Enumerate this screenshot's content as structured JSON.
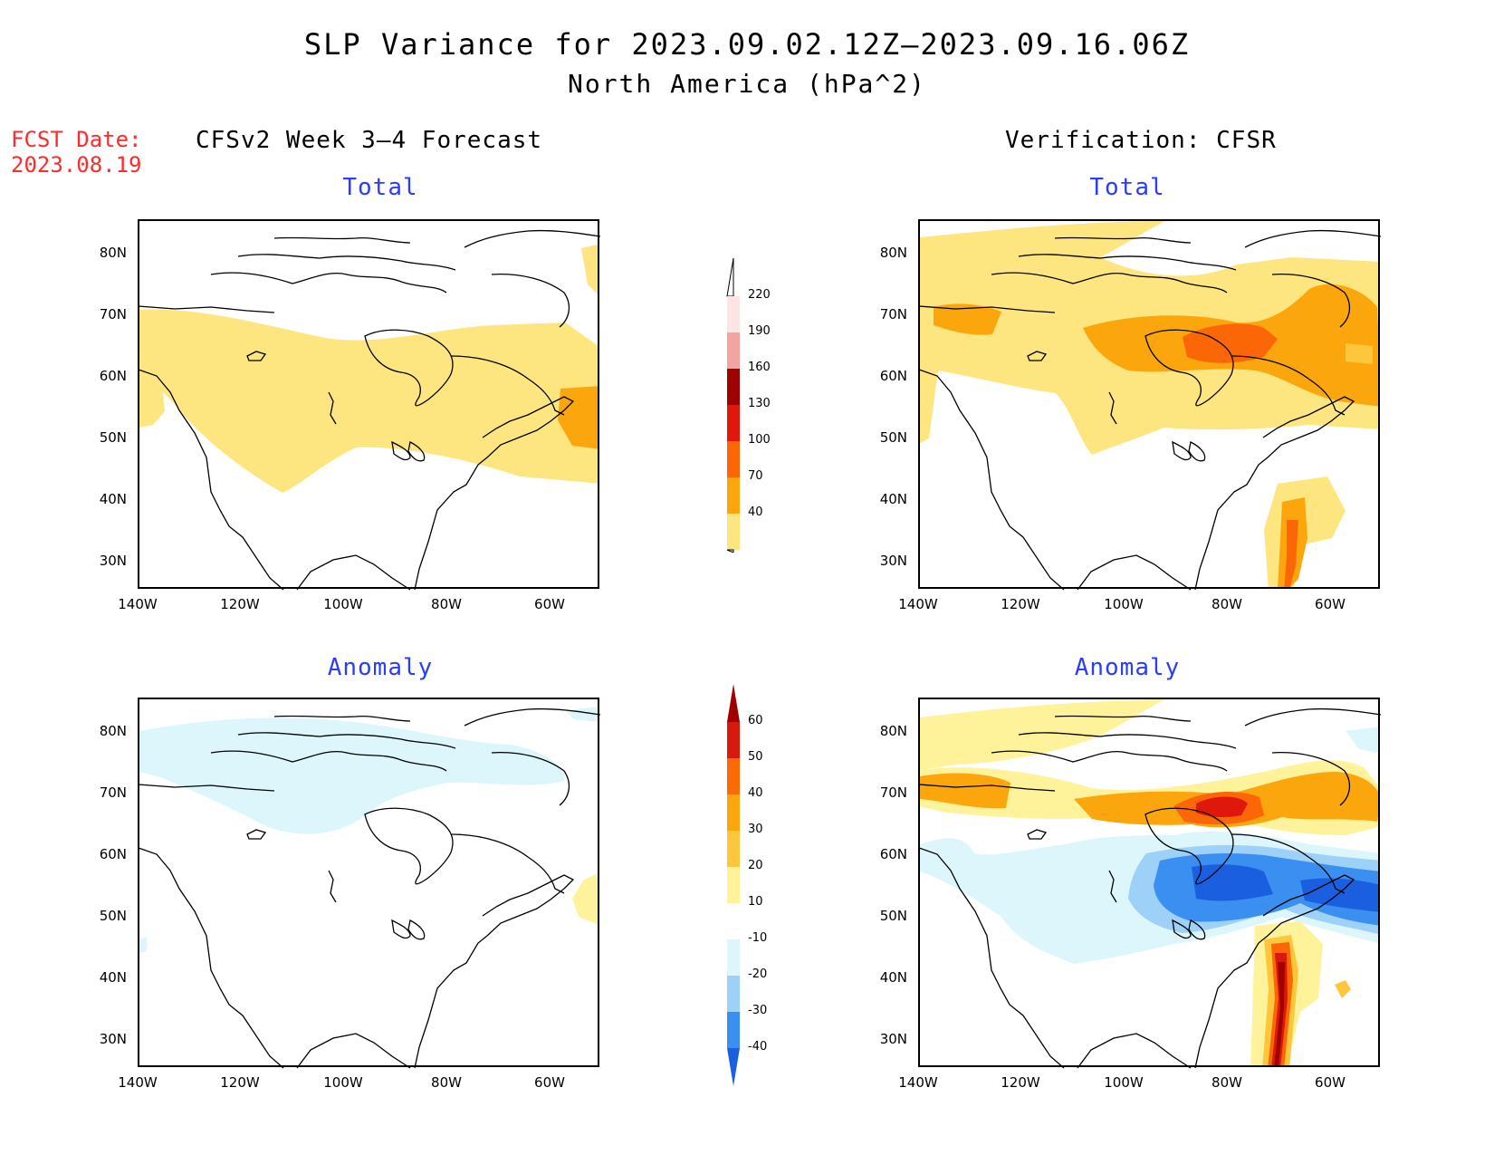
{
  "title": {
    "line1": "SLP Variance for 2023.09.02.12Z–2023.09.16.06Z",
    "line2": "North America (hPa^2)"
  },
  "fcst_date": {
    "label": "FCST Date:",
    "value": "2023.08.19"
  },
  "left_header": "CFSv2 Week 3–4 Forecast",
  "right_header": "Verification: CFSR",
  "panels": [
    {
      "id": "forecast-total",
      "title": "Total"
    },
    {
      "id": "verification-total",
      "title": "Total"
    },
    {
      "id": "forecast-anomaly",
      "title": "Anomaly"
    },
    {
      "id": "verification-anomaly",
      "title": "Anomaly"
    }
  ],
  "axes": {
    "lat_labels": [
      "80N",
      "70N",
      "60N",
      "50N",
      "40N",
      "30N"
    ],
    "lon_labels": [
      "140W",
      "120W",
      "100W",
      "80W",
      "60W"
    ]
  },
  "colorbar_total": {
    "levels": [
      "40",
      "70",
      "100",
      "130",
      "160",
      "190",
      "220"
    ],
    "colors": [
      "#fde680",
      "#fca60e",
      "#fb6706",
      "#e0170b",
      "#9e0202",
      "#f4a3a3",
      "#fde4e4"
    ]
  },
  "colorbar_anomaly": {
    "levels": [
      "60",
      "50",
      "40",
      "30",
      "20",
      "10",
      "-10",
      "-20",
      "-30",
      "-40"
    ],
    "colors": {
      "top_arrow": "#a00000",
      "above": [
        "#d81a0c",
        "#fb6a06",
        "#fca60e",
        "#fdc63c",
        "#fef29a",
        "#ffffff",
        "#dcf6fb",
        "#9ed1f7",
        "#3a8ff0"
      ],
      "bottom_arrow": "#1a5fe0"
    }
  }
}
